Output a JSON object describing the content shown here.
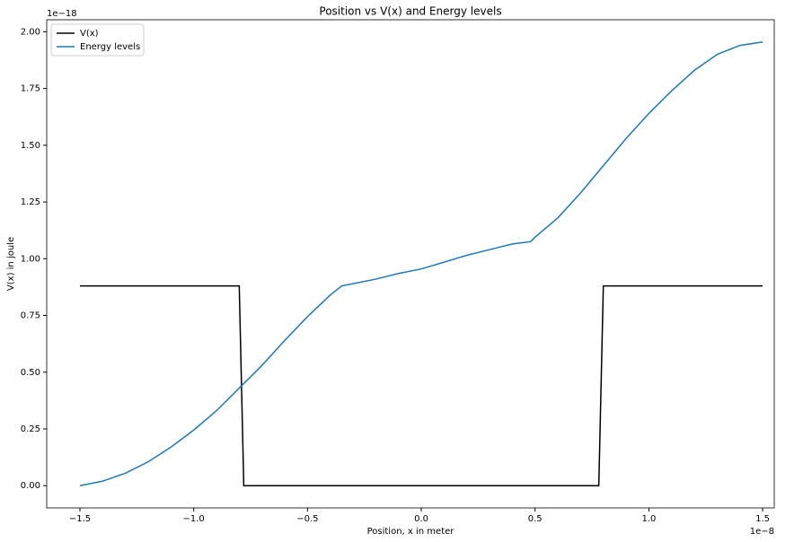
{
  "chart_data": {
    "type": "line",
    "title": "Position vs V(x) and Energy levels",
    "xlabel": "Position, x in meter",
    "ylabel": "V(x) in joule",
    "x_offset_label": "1e−8",
    "y_offset_label": "1e−18",
    "legend": "upper left",
    "xlim": [
      -1.646,
      1.551
    ],
    "ylim": [
      -0.098,
      2.053
    ],
    "xticks": [
      {
        "value": -1.5,
        "label": "−1.5"
      },
      {
        "value": -1.0,
        "label": "−1.0"
      },
      {
        "value": -0.5,
        "label": "−0.5"
      },
      {
        "value": 0,
        "label": "0.0"
      },
      0.5,
      {
        "value": 1.0,
        "label": "1.0"
      },
      1.5
    ],
    "yticks": [
      {
        "value": 0,
        "label": "0.00"
      },
      {
        "value": 0.25,
        "label": "0.25"
      },
      {
        "value": 0.5,
        "label": "0.50"
      },
      {
        "value": 0.75,
        "label": "0.75"
      },
      {
        "value": 1.0,
        "label": "1.00"
      },
      {
        "value": 1.25,
        "label": "1.25"
      },
      {
        "value": 1.5,
        "label": "1.50"
      },
      {
        "value": 1.75,
        "label": "1.75"
      },
      {
        "value": 2.0,
        "label": "2.00"
      }
    ],
    "series": [
      {
        "name": "V(x)",
        "color": "#000000",
        "x": [
          -1.5,
          -0.8,
          -0.78,
          0.78,
          0.8,
          1.5
        ],
        "values": [
          0.88,
          0.88,
          0,
          0,
          0.88,
          0.88
        ]
      },
      {
        "name": "Energy levels",
        "color": "#1f77b4",
        "x": [
          -1.5,
          -1.4,
          -1.3,
          -1.2,
          -1.1,
          -1.0,
          -0.9,
          -0.8,
          -0.7,
          -0.6,
          -0.5,
          -0.4,
          -0.35,
          -0.3,
          -0.2,
          -0.1,
          0,
          0.1,
          0.2,
          0.3,
          0.4,
          0.48,
          0.5,
          0.6,
          0.7,
          0.8,
          0.9,
          1.0,
          1.1,
          1.2,
          1.3,
          1.4,
          1.5
        ],
        "values": [
          0,
          0.02,
          0.055,
          0.105,
          0.17,
          0.245,
          0.33,
          0.43,
          0.53,
          0.64,
          0.745,
          0.84,
          0.88,
          0.89,
          0.91,
          0.935,
          0.955,
          0.985,
          1.015,
          1.04,
          1.065,
          1.075,
          1.095,
          1.18,
          1.29,
          1.41,
          1.53,
          1.64,
          1.74,
          1.83,
          1.9,
          1.94,
          1.955
        ]
      }
    ]
  }
}
